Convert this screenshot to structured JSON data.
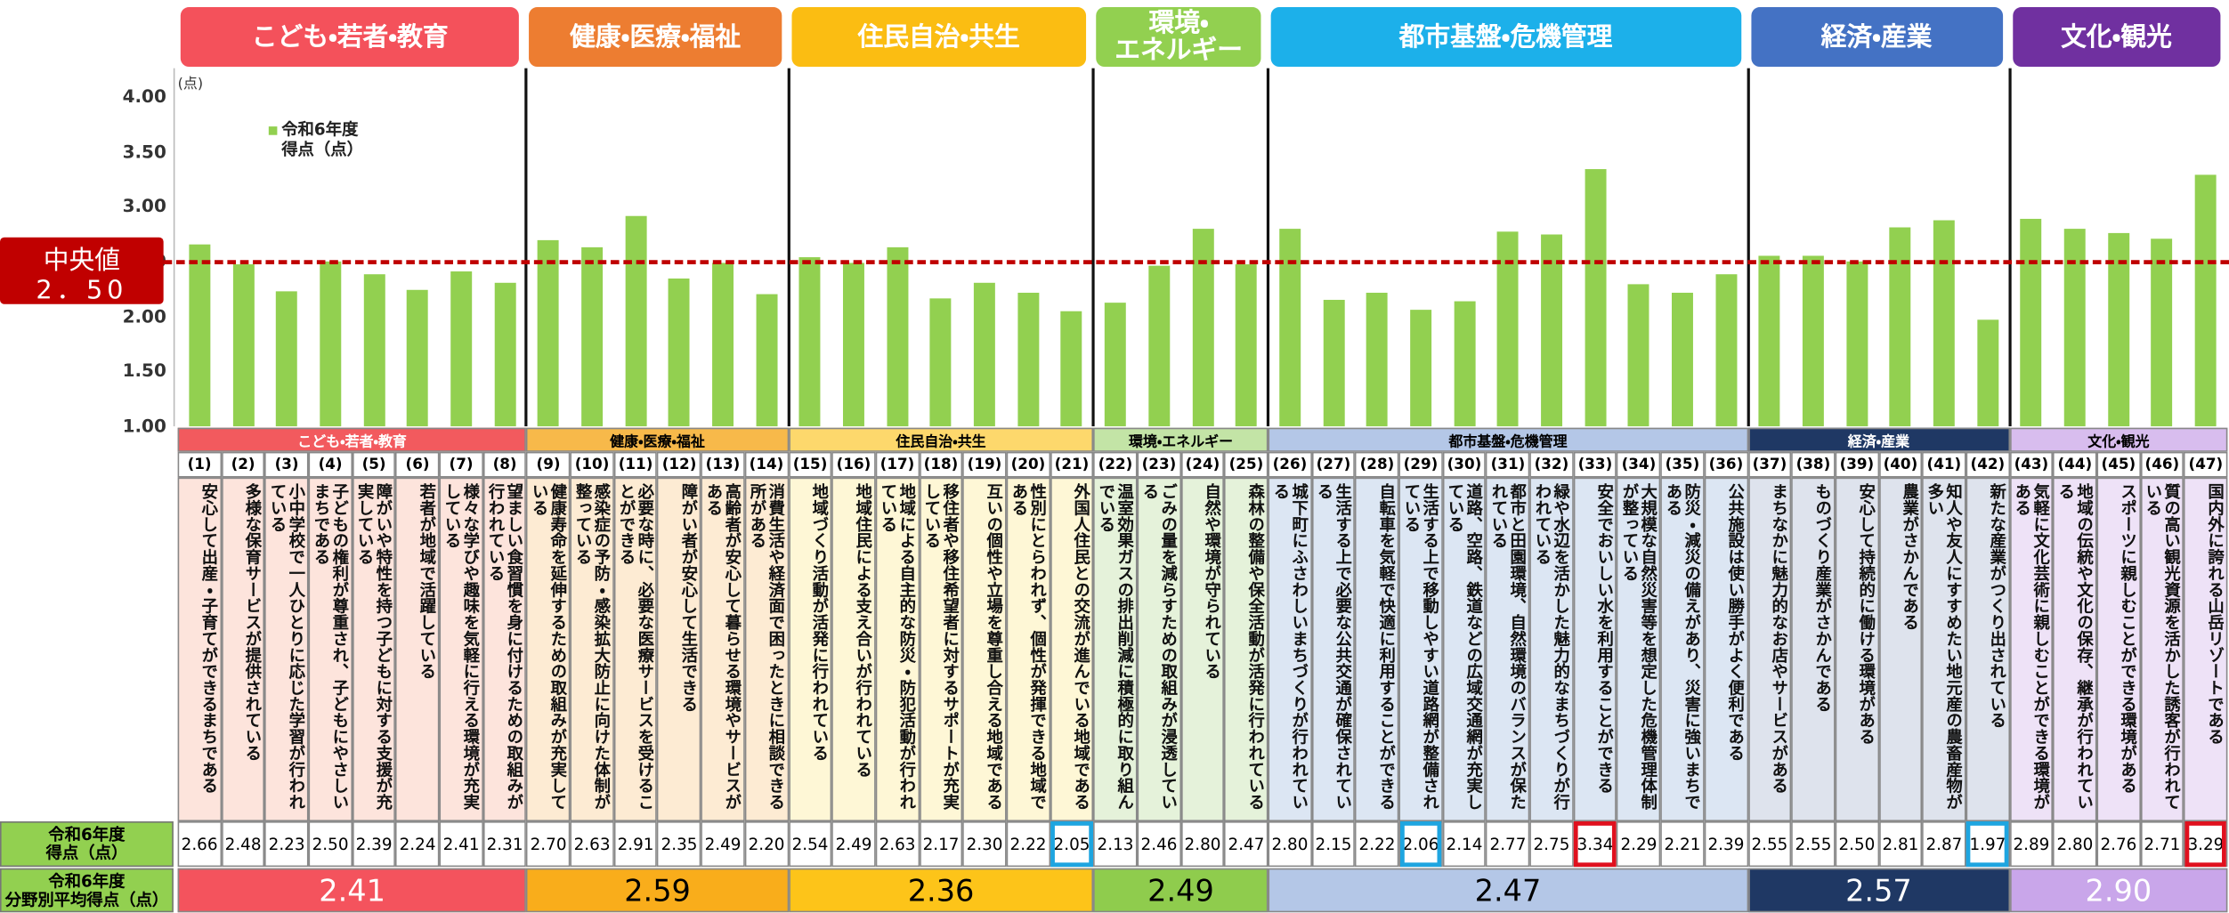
{
  "chart_data": {
    "type": "bar",
    "y_unit": "(点)",
    "ylim": [
      1,
      4
    ],
    "yticks": [
      {
        "value": 1,
        "label": "1.00"
      },
      {
        "value": 1.5,
        "label": "1.50"
      },
      {
        "value": 2,
        "label": "2.00"
      },
      {
        "value": 2.5,
        "label": "2.50"
      },
      {
        "value": 3,
        "label": "3.00"
      },
      {
        "value": 3.5,
        "label": "3.50"
      },
      {
        "value": 4,
        "label": "4.00"
      }
    ],
    "legend": {
      "name": "令和6年度\n得点（点）",
      "color": "#92d050"
    },
    "reference_line": {
      "label": "中央値",
      "value": 2.5,
      "value_label": "2．50",
      "color": "#c00000"
    },
    "row_labels": {
      "score": "令和6年度\n得点（点）",
      "average": "令和6年度\n分野別平均得点（点）"
    },
    "groups": [
      {
        "tab": "こども・若者・教育",
        "name": "こども・若者・教育",
        "tab_color": "#f4515b",
        "band_color": "#f25a5e",
        "band_text": "#ffffff",
        "bg_color": "#fde4dc",
        "avg_color": "#f4535d",
        "avg_text": "#ffffff",
        "average": 2.41,
        "average_label": "2.41",
        "items": [
          {
            "id": "(1)",
            "text": "安心して出産・子育てができるまちである",
            "value": 2.66,
            "value_label": "2.66"
          },
          {
            "id": "(2)",
            "text": "多様な保育サービスが提供されている",
            "value": 2.48,
            "value_label": "2.48"
          },
          {
            "id": "(3)",
            "text": "小中学校で一人ひとりに応じた学習が行われている",
            "value": 2.23,
            "value_label": "2.23"
          },
          {
            "id": "(4)",
            "text": "子どもの権利が尊重され、子どもにやさしいまちである",
            "value": 2.5,
            "value_label": "2.50"
          },
          {
            "id": "(5)",
            "text": "障がいや特性を持つ子どもに対する支援が充実している",
            "value": 2.39,
            "value_label": "2.39"
          },
          {
            "id": "(6)",
            "text": "若者が地域で活躍している",
            "value": 2.24,
            "value_label": "2.24"
          },
          {
            "id": "(7)",
            "text": "様々な学びや趣味を気軽に行える環境が充実している",
            "value": 2.41,
            "value_label": "2.41"
          },
          {
            "id": "(8)",
            "text": "望ましい食習慣を身に付けるための取組みが行われている",
            "value": 2.31,
            "value_label": "2.31"
          }
        ]
      },
      {
        "tab": "健康・医療・福祉",
        "name": "健康・医療・福祉",
        "tab_color": "#ed7d31",
        "band_color": "#f7b94a",
        "band_text": "#000000",
        "bg_color": "#fdebd3",
        "avg_color": "#f9ad1b",
        "avg_text": "#000000",
        "average": 2.59,
        "average_label": "2.59",
        "items": [
          {
            "id": "(9)",
            "text": "健康寿命を延伸するための取組みが充実している",
            "value": 2.7,
            "value_label": "2.70"
          },
          {
            "id": "(10)",
            "text": "感染症の予防・感染拡大防止に向けた体制が整っている",
            "value": 2.63,
            "value_label": "2.63"
          },
          {
            "id": "(11)",
            "text": "必要な時に、必要な医療サービスを受けることができる",
            "value": 2.91,
            "value_label": "2.91"
          },
          {
            "id": "(12)",
            "text": "障がい者が安心して生活できる",
            "value": 2.35,
            "value_label": "2.35"
          },
          {
            "id": "(13)",
            "text": "高齢者が安心して暮らせる環境やサービスがある",
            "value": 2.49,
            "value_label": "2.49"
          },
          {
            "id": "(14)",
            "text": "消費生活や経済面で困ったときに相談できる所がある",
            "value": 2.2,
            "value_label": "2.20"
          }
        ]
      },
      {
        "tab": "住民自治・共生",
        "name": "住民自治・共生",
        "tab_color": "#fbbd12",
        "band_color": "#fdd86c",
        "band_text": "#000000",
        "bg_color": "#fef7d6",
        "avg_color": "#fdc419",
        "avg_text": "#000000",
        "average": 2.36,
        "average_label": "2.36",
        "items": [
          {
            "id": "(15)",
            "text": "地域づくり活動が活発に行われている",
            "value": 2.54,
            "value_label": "2.54"
          },
          {
            "id": "(16)",
            "text": "地域住民による支え合いが行われている",
            "value": 2.49,
            "value_label": "2.49"
          },
          {
            "id": "(17)",
            "text": "地域による自主的な防災・防犯活動が行われている",
            "value": 2.63,
            "value_label": "2.63"
          },
          {
            "id": "(18)",
            "text": "移住者や移住希望者に対するサポートが充実している",
            "value": 2.17,
            "value_label": "2.17"
          },
          {
            "id": "(19)",
            "text": "互いの個性や立場を尊重し合える地域である",
            "value": 2.3,
            "value_label": "2.30"
          },
          {
            "id": "(20)",
            "text": "性別にとらわれず、個性が発揮できる地域である",
            "value": 2.22,
            "value_label": "2.22"
          },
          {
            "id": "(21)",
            "text": "外国人住民との交流が進んでいる地域である",
            "value": 2.05,
            "value_label": "2.05",
            "highlight": "#1ea5e0"
          }
        ]
      },
      {
        "tab": "環境・\nエネルギー",
        "name": "環境・エネルギー",
        "tab_color": "#92d050",
        "band_color": "#c3e4a6",
        "band_text": "#000000",
        "bg_color": "#e5f2da",
        "avg_color": "#8fcc4d",
        "avg_text": "#000000",
        "average": 2.49,
        "average_label": "2.49",
        "items": [
          {
            "id": "(22)",
            "text": "温室効果ガスの排出削減に積極的に取り組んでいる",
            "value": 2.13,
            "value_label": "2.13"
          },
          {
            "id": "(23)",
            "text": "ごみの量を減らすための取組みが浸透している",
            "value": 2.46,
            "value_label": "2.46"
          },
          {
            "id": "(24)",
            "text": "自然や環境が守られている",
            "value": 2.8,
            "value_label": "2.80"
          },
          {
            "id": "(25)",
            "text": "森林の整備や保全活動が活発に行われている",
            "value": 2.47,
            "value_label": "2.47"
          }
        ]
      },
      {
        "tab": "都市基盤・危機管理",
        "name": "都市基盤・危機管理",
        "tab_color": "#1cb0ea",
        "band_color": "#b4c7e7",
        "band_text": "#000000",
        "bg_color": "#dce6f3",
        "avg_color": "#b4c7e7",
        "avg_text": "#000000",
        "average": 2.47,
        "average_label": "2.47",
        "items": [
          {
            "id": "(26)",
            "text": "城下町にふさわしいまちづくりが行われている",
            "value": 2.8,
            "value_label": "2.80"
          },
          {
            "id": "(27)",
            "text": "生活する上で必要な公共交通が確保されている",
            "value": 2.15,
            "value_label": "2.15"
          },
          {
            "id": "(28)",
            "text": "自転車を気軽で快適に利用することができる",
            "value": 2.22,
            "value_label": "2.22"
          },
          {
            "id": "(29)",
            "text": "生活する上で移動しやすい道路網が整備されている",
            "value": 2.06,
            "value_label": "2.06",
            "highlight": "#1ea5e0"
          },
          {
            "id": "(30)",
            "text": "道路、空路、鉄道などの広域交通網が充実している",
            "value": 2.14,
            "value_label": "2.14"
          },
          {
            "id": "(31)",
            "text": "都市と田園環境、自然環境のバランスが保たれている",
            "value": 2.77,
            "value_label": "2.77"
          },
          {
            "id": "(32)",
            "text": "緑や水辺を活かした魅力的なまちづくりが行われている",
            "value": 2.75,
            "value_label": "2.75"
          },
          {
            "id": "(33)",
            "text": "安全でおいしい水を利用することができる",
            "value": 3.34,
            "value_label": "3.34",
            "highlight": "#e0101e"
          },
          {
            "id": "(34)",
            "text": "大規模な自然災害等を想定した危機管理体制が整っている",
            "value": 2.29,
            "value_label": "2.29"
          },
          {
            "id": "(35)",
            "text": "防災・減災の備えがあり、災害に強いまちである",
            "value": 2.21,
            "value_label": "2.21"
          },
          {
            "id": "(36)",
            "text": "公共施設は使い勝手がよく便利である",
            "value": 2.39,
            "value_label": "2.39"
          }
        ]
      },
      {
        "tab": "経済・産業",
        "name": "経済・産業",
        "tab_color": "#4472c4",
        "band_color": "#1f3864",
        "band_text": "#ffffff",
        "bg_color": "#dee3ed",
        "avg_color": "#1f3864",
        "avg_text": "#ffffff",
        "average": 2.57,
        "average_label": "2.57",
        "items": [
          {
            "id": "(37)",
            "text": "まちなかに魅力的なお店やサービスがある",
            "value": 2.55,
            "value_label": "2.55"
          },
          {
            "id": "(38)",
            "text": "ものづくり産業がさかんである",
            "value": 2.55,
            "value_label": "2.55"
          },
          {
            "id": "(39)",
            "text": "安心して持続的に働ける環境がある",
            "value": 2.5,
            "value_label": "2.50"
          },
          {
            "id": "(40)",
            "text": "農業がさかんである",
            "value": 2.81,
            "value_label": "2.81"
          },
          {
            "id": "(41)",
            "text": "知人や友人にすすめたい地元産の農畜産物が多い",
            "value": 2.87,
            "value_label": "2.87"
          },
          {
            "id": "(42)",
            "text": "新たな産業がつくり出されている",
            "value": 1.97,
            "value_label": "1.97",
            "highlight": "#1ea5e0"
          }
        ]
      },
      {
        "tab": "文化・観光",
        "name": "文化・観光",
        "tab_color": "#7030a0",
        "band_color": "#d8bdee",
        "band_text": "#000000",
        "bg_color": "#eee2f7",
        "avg_color": "#c9a6ea",
        "avg_text": "#ffffff",
        "average": 2.9,
        "average_label": "2.90",
        "items": [
          {
            "id": "(43)",
            "text": "気軽に文化芸術に親しむことができる環境がある",
            "value": 2.89,
            "value_label": "2.89"
          },
          {
            "id": "(44)",
            "text": "地域の伝統や文化の保存、継承が行われている",
            "value": 2.8,
            "value_label": "2.80"
          },
          {
            "id": "(45)",
            "text": "スポーツに親しむことができる環境がある",
            "value": 2.76,
            "value_label": "2.76"
          },
          {
            "id": "(46)",
            "text": "質の高い観光資源を活かした誘客が行われている",
            "value": 2.71,
            "value_label": "2.71"
          },
          {
            "id": "(47)",
            "text": "国内外に誇れる山岳リゾートである",
            "value": 3.29,
            "value_label": "3.29",
            "highlight": "#e0101e"
          }
        ]
      }
    ]
  }
}
